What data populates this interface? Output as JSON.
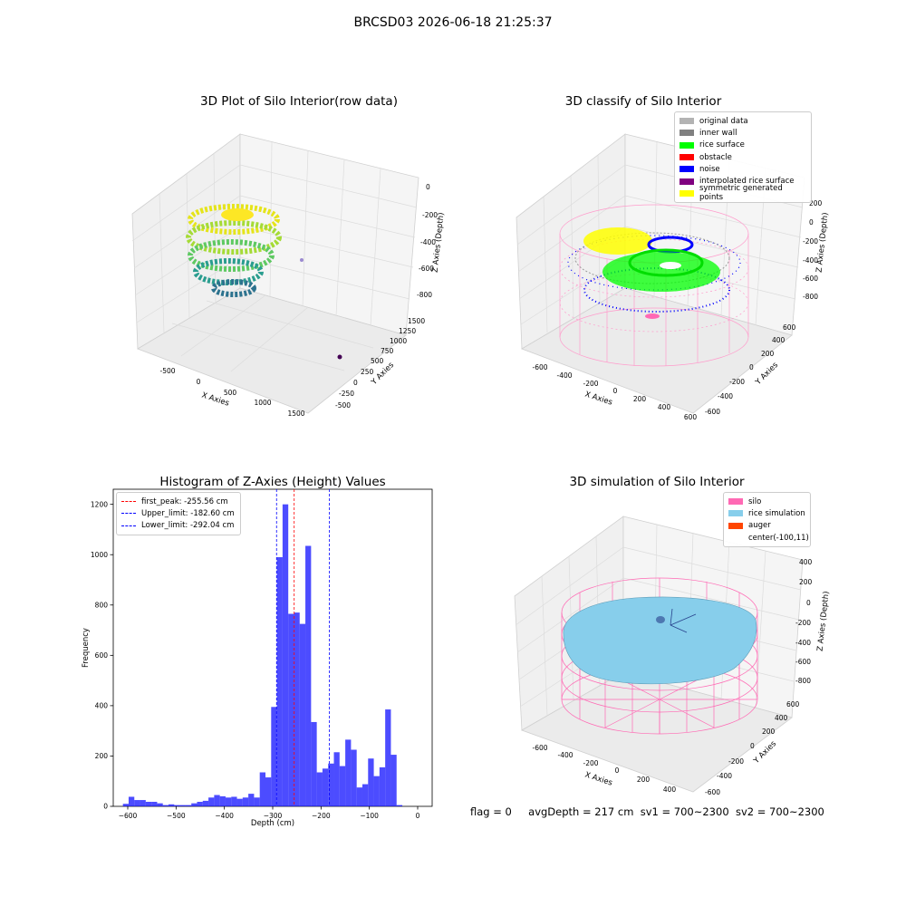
{
  "suptitle": "BRCSD03 2026-06-18 21:25:37",
  "panels": {
    "raw3d": {
      "title": "3D Plot of Silo Interior(row data)",
      "xlabel": "X Axies",
      "ylabel": "Y Axies",
      "zlabel": "Z Axies (Depth)",
      "xticks": [
        "-500",
        "0",
        "500",
        "1000",
        "1500"
      ],
      "yticks": [
        "-500",
        "-250",
        "0",
        "250",
        "500",
        "750",
        "1000",
        "1250",
        "1500"
      ],
      "zticks": [
        "0",
        "-200",
        "-400",
        "-600",
        "-800"
      ]
    },
    "classify3d": {
      "title": "3D classify of Silo Interior",
      "xlabel": "X Axies",
      "ylabel": "Y Axies",
      "zlabel": "Z Axies (Depth)",
      "xticks": [
        "-600",
        "-400",
        "-200",
        "0",
        "200",
        "400",
        "600"
      ],
      "yticks": [
        "-600",
        "-400",
        "-200",
        "0",
        "200",
        "400",
        "600"
      ],
      "zticks": [
        "200",
        "0",
        "-200",
        "-400",
        "-600",
        "-800"
      ],
      "legend": [
        {
          "label": "original data",
          "color": "#b3b3b3"
        },
        {
          "label": "inner wall",
          "color": "#808080"
        },
        {
          "label": "rice surface",
          "color": "#00ff00"
        },
        {
          "label": "obstacle",
          "color": "#ff0000"
        },
        {
          "label": "noise",
          "color": "#0000ff"
        },
        {
          "label": "interpolated rice surface",
          "color": "#800080"
        },
        {
          "label": "symmetric generated points",
          "color": "#ffff00"
        }
      ]
    },
    "simulation3d": {
      "title": "3D simulation of Silo Interior",
      "xlabel": "X Axies",
      "ylabel": "Y Axies",
      "zlabel": "Z Axies (Depth)",
      "xticks": [
        "-600",
        "-400",
        "-200",
        "0",
        "200",
        "400"
      ],
      "yticks": [
        "-600",
        "-400",
        "-200",
        "0",
        "200",
        "400",
        "600"
      ],
      "zticks": [
        "400",
        "200",
        "0",
        "-200",
        "-400",
        "-600",
        "-800"
      ],
      "legend": [
        {
          "label": "silo",
          "color": "#ff69b4"
        },
        {
          "label": "rice simulation",
          "color": "#87ceeb"
        },
        {
          "label": "auger",
          "color": "#ff4500"
        },
        {
          "label": "center(-100,11)",
          "color": ""
        }
      ]
    }
  },
  "status": {
    "flag": "flag = 0",
    "avg_depth": "avgDepth = 217 cm",
    "sv1": "sv1 = 700~2300",
    "sv2": "sv2 = 700~2300"
  },
  "chart_data": {
    "type": "bar",
    "title": "Histogram of Z-Axies (Height) Values",
    "xlabel": "Depth (cm)",
    "ylabel": "Frequency",
    "xlim": [
      -630,
      30
    ],
    "ylim": [
      0,
      1260
    ],
    "xticks": [
      -600,
      -500,
      -400,
      -300,
      -200,
      -100,
      0
    ],
    "yticks": [
      0,
      200,
      400,
      600,
      800,
      1000,
      1200
    ],
    "bar_color": "#0000ff",
    "bin_width": 11.8,
    "bin_starts": [
      -610,
      -598.2,
      -586.4,
      -574.6,
      -562.8,
      -551,
      -539.2,
      -527.4,
      -515.6,
      -503.8,
      -492,
      -480.2,
      -468.4,
      -456.6,
      -444.8,
      -433,
      -421.2,
      -409.4,
      -397.6,
      -385.8,
      -374,
      -362.2,
      -350.4,
      -338.6,
      -326.8,
      -315,
      -303.2,
      -291.4,
      -279.6,
      -267.8,
      -256,
      -244.2,
      -232.4,
      -220.6,
      -208.8,
      -197,
      -185.2,
      -173.4,
      -161.6,
      -149.8,
      -138,
      -126.2,
      -114.4,
      -102.6,
      -90.8,
      -79,
      -67.2,
      -55.4,
      -43.6,
      -31.8,
      -20,
      -8.2
    ],
    "values": [
      10,
      38,
      25,
      25,
      18,
      18,
      12,
      5,
      8,
      5,
      5,
      5,
      12,
      18,
      22,
      35,
      45,
      40,
      35,
      38,
      30,
      35,
      50,
      35,
      135,
      115,
      395,
      990,
      1200,
      765,
      770,
      725,
      1035,
      335,
      135,
      150,
      170,
      215,
      160,
      265,
      225,
      75,
      88,
      190,
      120,
      155,
      385,
      205,
      5,
      0,
      0,
      0
    ],
    "lines": [
      {
        "label": "first_peak: -255.56 cm",
        "x": -255.56,
        "color": "#ff0000"
      },
      {
        "label": "Upper_limit: -182.60 cm",
        "x": -182.6,
        "color": "#0000ff"
      },
      {
        "label": "Lower_limit: -292.04 cm",
        "x": -292.04,
        "color": "#0000ff"
      }
    ]
  }
}
